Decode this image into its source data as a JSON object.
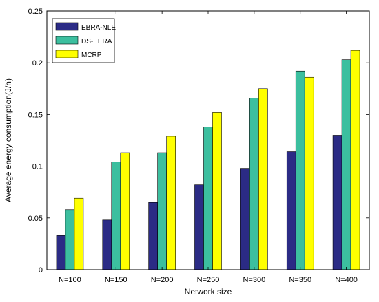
{
  "chart_data": {
    "type": "bar",
    "categories": [
      "N=100",
      "N=150",
      "N=200",
      "N=250",
      "N=300",
      "N=350",
      "N=400"
    ],
    "series": [
      {
        "name": "EBRA-NLE",
        "color": "#2b2b85",
        "values": [
          0.033,
          0.048,
          0.065,
          0.082,
          0.098,
          0.114,
          0.13
        ]
      },
      {
        "name": "DS-EERA",
        "color": "#3cbf9f",
        "values": [
          0.058,
          0.104,
          0.113,
          0.138,
          0.166,
          0.192,
          0.203
        ]
      },
      {
        "name": "MCRP",
        "color": "#ffff00",
        "values": [
          0.069,
          0.113,
          0.129,
          0.152,
          0.175,
          0.186,
          0.212
        ]
      }
    ],
    "xlabel": "Network size",
    "ylabel": "Average energy consumption(J/h)",
    "ylim": [
      0,
      0.25
    ],
    "yticks": [
      0,
      0.05,
      0.1,
      0.15,
      0.2,
      0.25
    ],
    "ytick_labels": [
      "0",
      "0.05",
      "0.1",
      "0.15",
      "0.2",
      "0.25"
    ],
    "grid": false,
    "legend_position": "top-left"
  }
}
